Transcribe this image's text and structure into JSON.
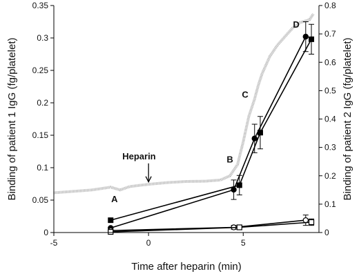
{
  "chart_data": {
    "type": "line",
    "title": "",
    "xlabel": "Time after heparin (min)",
    "ylabel_left": "Binding of patient 1 IgG (fg/platelet)",
    "ylabel_right": "Binding of patient 2 IgG (fg/platelet)",
    "xlim": [
      -5,
      9
    ],
    "ylim_left": [
      0,
      0.35
    ],
    "ylim_right": [
      0,
      0.8
    ],
    "x_ticks": [
      -5,
      0,
      5
    ],
    "y_ticks_left": [
      0,
      0.05,
      0.1,
      0.15,
      0.2,
      0.25,
      0.3,
      0.35
    ],
    "y_ticks_right": [
      0,
      0.1,
      0.2,
      0.3,
      0.4,
      0.5,
      0.6,
      0.7,
      0.8
    ],
    "x_tick_labels": [
      "-5",
      "0",
      "5"
    ],
    "y_tick_labels_left": [
      "0",
      "0.05",
      "0.1",
      "0.15",
      "0.2",
      "0.25",
      "0.3",
      "0.35"
    ],
    "y_tick_labels_right": [
      "0",
      "0.1",
      "0.2",
      "0.3",
      "0.4",
      "0.5",
      "0.6",
      "0.7",
      "0.8"
    ],
    "grid": false,
    "series": [
      {
        "marker": "filled-circle",
        "axis": "left",
        "x": [
          -2,
          4.5,
          5.6,
          8.3
        ],
        "y": [
          0.007,
          0.066,
          0.145,
          0.302
        ],
        "err": [
          0,
          0.015,
          0.022,
          0.023
        ]
      },
      {
        "marker": "filled-square",
        "axis": "left",
        "x": [
          -2,
          4.8,
          5.9,
          8.6
        ],
        "y": [
          0.019,
          0.073,
          0.154,
          0.298
        ],
        "err": [
          0,
          0.015,
          0.025,
          0.023
        ]
      },
      {
        "marker": "open-circle",
        "axis": "left",
        "x": [
          -2,
          4.5,
          8.3
        ],
        "y": [
          0.003,
          0.008,
          0.019
        ],
        "err": [
          0,
          0.003,
          0.008
        ]
      },
      {
        "marker": "open-square",
        "axis": "left",
        "x": [
          -2,
          4.8,
          8.6
        ],
        "y": [
          0.001,
          0.008,
          0.016
        ],
        "err": [
          0,
          0.003,
          0.005
        ]
      },
      {
        "style": "gray-trace",
        "axis": "right",
        "x": [
          -5,
          -4,
          -3,
          -2.5,
          -2,
          -1.5,
          -1,
          0,
          1,
          2,
          3,
          3.8,
          4.3,
          4.7,
          5.0,
          5.3,
          5.6,
          5.8,
          6.0,
          6.4,
          6.8,
          7.2,
          7.6,
          8.0,
          8.5,
          8.7
        ],
        "y": [
          0.14,
          0.145,
          0.15,
          0.155,
          0.16,
          0.15,
          0.162,
          0.17,
          0.176,
          0.18,
          0.181,
          0.185,
          0.2,
          0.24,
          0.32,
          0.41,
          0.47,
          0.52,
          0.56,
          0.62,
          0.66,
          0.69,
          0.72,
          0.74,
          0.75,
          0.77
        ]
      }
    ],
    "annotations": [
      {
        "text": "A",
        "x": -1.8,
        "y": 0.047
      },
      {
        "text": "B",
        "x": 4.3,
        "y": 0.108
      },
      {
        "text": "C",
        "x": 5.1,
        "y": 0.208
      },
      {
        "text": "D",
        "x": 7.8,
        "y": 0.316
      },
      {
        "text": "Heparin",
        "x": -0.5,
        "y": 0.113,
        "arrow_to_y": 0.078
      }
    ]
  }
}
